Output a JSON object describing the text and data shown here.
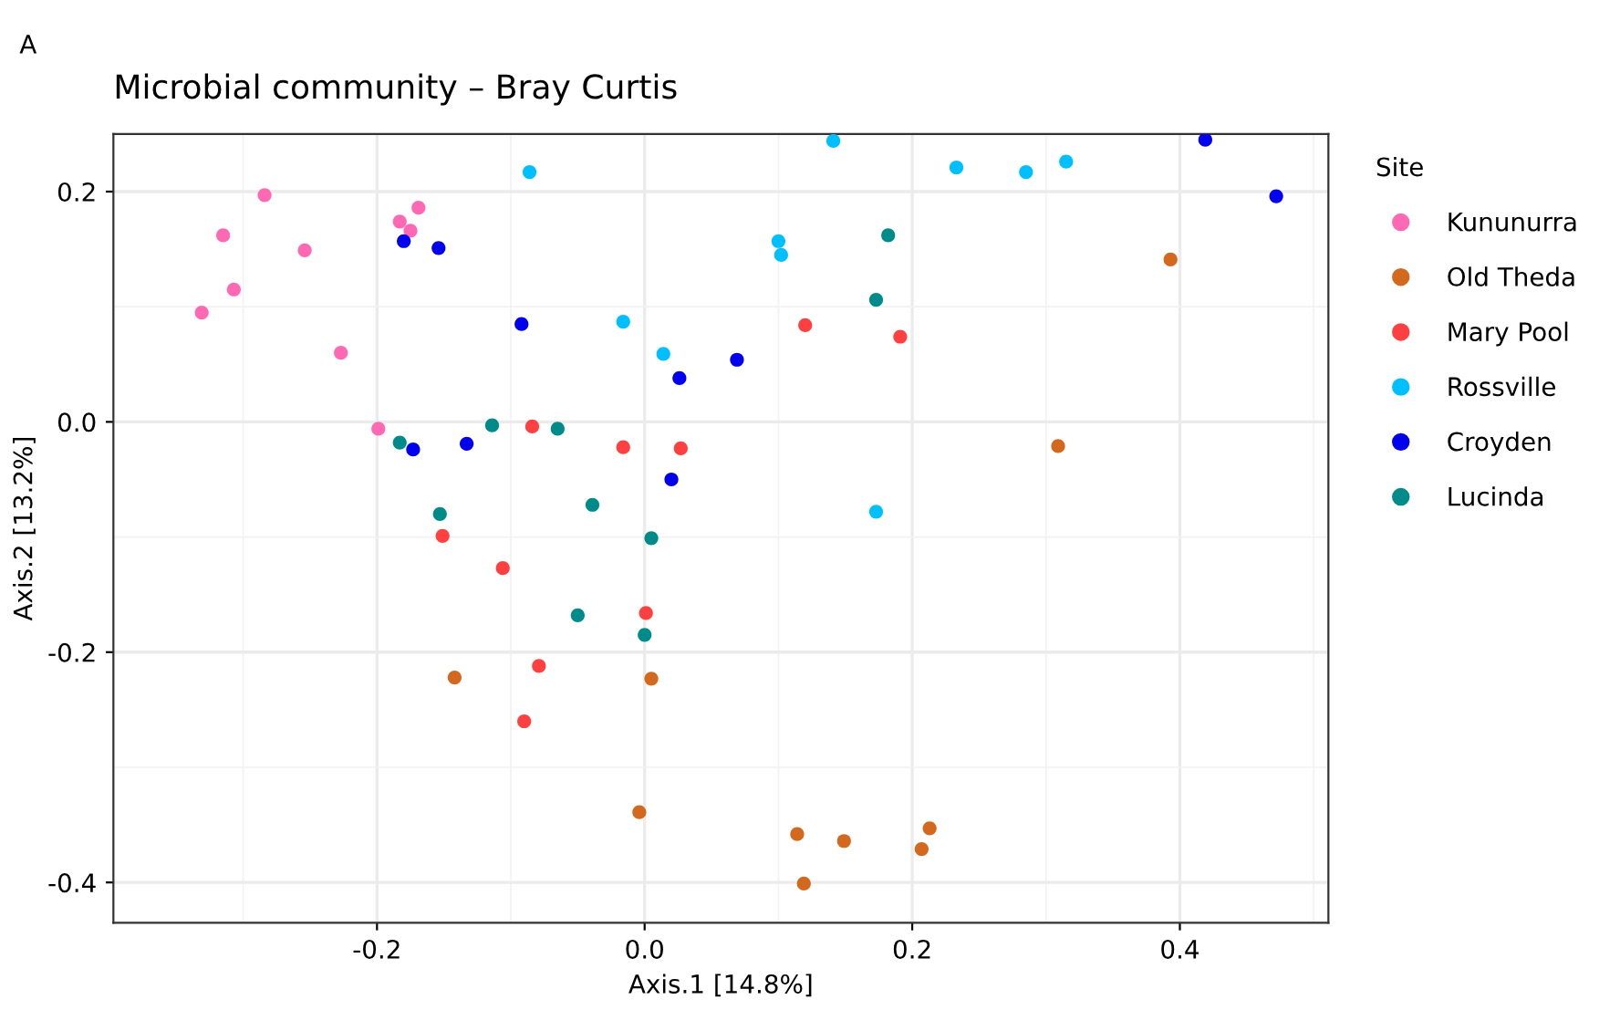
{
  "chart_data": {
    "type": "scatter",
    "title": "Microbial community – Bray Curtis",
    "xlabel": "Axis.1 [14.8%]",
    "ylabel": "Axis.2 [13.2%]",
    "legend_title": "Site",
    "annotations": [
      "A"
    ],
    "xlim": [
      -0.397,
      0.511
    ],
    "ylim": [
      -0.435,
      0.25
    ],
    "xticks": [
      {
        "value": -0.2,
        "label": "-0.2"
      },
      {
        "value": 0,
        "label": "0.0"
      },
      {
        "value": 0.2,
        "label": "0.2"
      },
      {
        "value": 0.4,
        "label": "0.4"
      }
    ],
    "yticks": [
      {
        "value": -0.4,
        "label": "-0.4"
      },
      {
        "value": -0.2,
        "label": "-0.2"
      },
      {
        "value": 0,
        "label": "0.0"
      },
      {
        "value": 0.2,
        "label": "0.2"
      }
    ],
    "grid": true,
    "legend": "right",
    "marker": "circle",
    "series": [
      {
        "name": "Kununurra",
        "color": "#ff69b4",
        "x": [
          -0.331,
          -0.315,
          -0.307,
          -0.284,
          -0.254,
          -0.227,
          -0.199,
          -0.183,
          -0.175,
          -0.169
        ],
        "values": [
          0.095,
          0.162,
          0.115,
          0.197,
          0.149,
          0.06,
          -0.006,
          0.174,
          0.166,
          0.186
        ]
      },
      {
        "name": "Old Theda",
        "color": "#d2691e",
        "x": [
          0.393,
          0.309,
          -0.142,
          0.005,
          -0.004,
          0.114,
          0.149,
          0.213,
          0.207,
          0.119
        ],
        "values": [
          0.141,
          -0.021,
          -0.222,
          -0.223,
          -0.339,
          -0.358,
          -0.364,
          -0.353,
          -0.371,
          -0.401
        ]
      },
      {
        "name": "Mary Pool",
        "color": "#ff4040",
        "x": [
          -0.084,
          -0.016,
          0.027,
          0.12,
          0.191,
          -0.151,
          -0.106,
          0.001,
          -0.079,
          -0.09
        ],
        "values": [
          -0.004,
          -0.022,
          -0.023,
          0.084,
          0.074,
          -0.099,
          -0.127,
          -0.166,
          -0.212,
          -0.26
        ]
      },
      {
        "name": "Rossville",
        "color": "#00bfff",
        "x": [
          -0.086,
          -0.016,
          0.014,
          0.141,
          0.233,
          0.285,
          0.315,
          0.1,
          0.102,
          0.173
        ],
        "values": [
          0.217,
          0.087,
          0.059,
          0.244,
          0.221,
          0.217,
          0.226,
          0.157,
          0.145,
          -0.078
        ]
      },
      {
        "name": "Croyden",
        "color": "#0000ee",
        "x": [
          -0.18,
          -0.154,
          -0.092,
          0.026,
          -0.173,
          -0.133,
          0.02,
          0.069,
          0.419,
          0.472
        ],
        "values": [
          0.157,
          0.151,
          0.085,
          0.038,
          -0.024,
          -0.019,
          -0.05,
          0.054,
          0.245,
          0.196
        ]
      },
      {
        "name": "Lucinda",
        "color": "#008b8b",
        "x": [
          -0.183,
          -0.114,
          -0.065,
          -0.153,
          -0.039,
          0.005,
          -0.05,
          0.0,
          0.182,
          0.173
        ],
        "values": [
          -0.018,
          -0.003,
          -0.006,
          -0.08,
          -0.072,
          -0.101,
          -0.168,
          -0.185,
          0.162,
          0.106
        ]
      }
    ]
  }
}
